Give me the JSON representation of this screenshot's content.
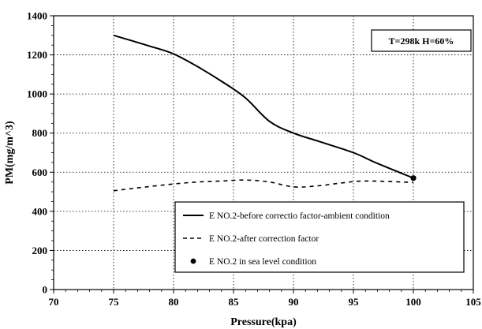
{
  "chart_data": {
    "type": "line",
    "title": "",
    "xlabel": "Pressure(kpa)",
    "ylabel": "PM(mg/m^3)",
    "xlim": [
      70,
      105
    ],
    "ylim": [
      0,
      1400
    ],
    "xticks": [
      70,
      75,
      80,
      85,
      90,
      95,
      100,
      105
    ],
    "yticks": [
      0,
      200,
      400,
      600,
      800,
      1000,
      1200,
      1400
    ],
    "grid": true,
    "annotation": "T=298k  H=60%",
    "legend_position": "bottom-right",
    "series": [
      {
        "name": "E NO.2-before correctio factor-ambient condition",
        "style": "solid",
        "x": [
          75,
          78,
          80,
          82,
          84,
          86,
          88,
          90,
          92,
          95,
          97,
          100
        ],
        "y": [
          1300,
          1245,
          1205,
          1140,
          1065,
          980,
          860,
          800,
          760,
          700,
          645,
          570
        ]
      },
      {
        "name": "E NO.2-after correction factor",
        "style": "dashed",
        "x": [
          75,
          77,
          80,
          82,
          84,
          86,
          88,
          90,
          92,
          94,
          96,
          100
        ],
        "y": [
          505,
          520,
          540,
          550,
          555,
          560,
          550,
          525,
          530,
          545,
          555,
          548
        ]
      },
      {
        "name": "E NO.2 in sea level condition",
        "style": "marker",
        "x": [
          100
        ],
        "y": [
          570
        ]
      }
    ],
    "colors": {
      "line": "#000000",
      "grid": "#000000",
      "background": "#ffffff"
    }
  }
}
